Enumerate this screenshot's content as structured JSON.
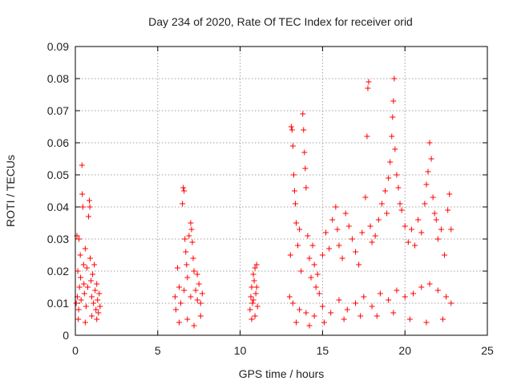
{
  "chart_data": {
    "type": "scatter",
    "title": "Day 234 of 2020, Rate Of TEC Index for receiver orid",
    "xlabel": "GPS time / hours",
    "ylabel": "ROTI / TECUs",
    "xlim": [
      0,
      25
    ],
    "ylim": [
      0,
      0.09
    ],
    "xticks": [
      0,
      5,
      10,
      15,
      20,
      25
    ],
    "xtick_labels": [
      "0",
      "5",
      "10",
      "15",
      "20",
      "25"
    ],
    "yticks": [
      0,
      0.01,
      0.02,
      0.03,
      0.04,
      0.05,
      0.06,
      0.07,
      0.08,
      0.09
    ],
    "ytick_labels": [
      "0",
      "0.01",
      "0.02",
      "0.03",
      "0.04",
      "0.05",
      "0.06",
      "0.07",
      "0.08",
      "0.09"
    ],
    "grid": true,
    "marker": "plus",
    "marker_color": "#ff0000",
    "series": [
      {
        "name": "ROTI",
        "points": [
          [
            0.05,
            0.01
          ],
          [
            0.1,
            0.031
          ],
          [
            0.12,
            0.012
          ],
          [
            0.15,
            0.02
          ],
          [
            0.2,
            0.008
          ],
          [
            0.22,
            0.03
          ],
          [
            0.25,
            0.015
          ],
          [
            0.3,
            0.025
          ],
          [
            0.32,
            0.018
          ],
          [
            0.35,
            0.011
          ],
          [
            0.4,
            0.053
          ],
          [
            0.42,
            0.044
          ],
          [
            0.45,
            0.04
          ],
          [
            0.5,
            0.022
          ],
          [
            0.52,
            0.016
          ],
          [
            0.55,
            0.013
          ],
          [
            0.6,
            0.027
          ],
          [
            0.65,
            0.009
          ],
          [
            0.7,
            0.021
          ],
          [
            0.75,
            0.015
          ],
          [
            0.8,
            0.037
          ],
          [
            0.85,
            0.042
          ],
          [
            0.88,
            0.04
          ],
          [
            0.9,
            0.024
          ],
          [
            0.95,
            0.017
          ],
          [
            1.0,
            0.012
          ],
          [
            1.05,
            0.019
          ],
          [
            1.1,
            0.01
          ],
          [
            1.15,
            0.022
          ],
          [
            1.2,
            0.014
          ],
          [
            1.25,
            0.008
          ],
          [
            1.3,
            0.016
          ],
          [
            1.35,
            0.011
          ],
          [
            1.4,
            0.007
          ],
          [
            1.45,
            0.013
          ],
          [
            1.5,
            0.009
          ],
          [
            0.18,
            0.005
          ],
          [
            0.6,
            0.004
          ],
          [
            1.0,
            0.006
          ],
          [
            1.3,
            0.005
          ],
          [
            6.05,
            0.012
          ],
          [
            6.1,
            0.008
          ],
          [
            6.2,
            0.021
          ],
          [
            6.3,
            0.015
          ],
          [
            6.4,
            0.01
          ],
          [
            6.5,
            0.041
          ],
          [
            6.55,
            0.046
          ],
          [
            6.6,
            0.045
          ],
          [
            6.65,
            0.03
          ],
          [
            6.7,
            0.026
          ],
          [
            6.75,
            0.022
          ],
          [
            6.8,
            0.018
          ],
          [
            6.9,
            0.031
          ],
          [
            7.0,
            0.035
          ],
          [
            7.05,
            0.033
          ],
          [
            7.1,
            0.029
          ],
          [
            7.15,
            0.024
          ],
          [
            7.2,
            0.02
          ],
          [
            7.3,
            0.014
          ],
          [
            7.4,
            0.011
          ],
          [
            7.5,
            0.016
          ],
          [
            7.6,
            0.01
          ],
          [
            7.7,
            0.013
          ],
          [
            6.3,
            0.004
          ],
          [
            6.8,
            0.005
          ],
          [
            7.2,
            0.003
          ],
          [
            7.6,
            0.006
          ],
          [
            6.6,
            0.014
          ],
          [
            7.0,
            0.012
          ],
          [
            7.4,
            0.019
          ],
          [
            10.6,
            0.008
          ],
          [
            10.65,
            0.012
          ],
          [
            10.7,
            0.015
          ],
          [
            10.75,
            0.01
          ],
          [
            10.8,
            0.019
          ],
          [
            10.85,
            0.017
          ],
          [
            10.9,
            0.021
          ],
          [
            10.95,
            0.013
          ],
          [
            11.0,
            0.022
          ],
          [
            11.05,
            0.009
          ],
          [
            10.7,
            0.005
          ],
          [
            10.9,
            0.006
          ],
          [
            11.0,
            0.015
          ],
          [
            10.8,
            0.011
          ],
          [
            13.0,
            0.012
          ],
          [
            13.05,
            0.025
          ],
          [
            13.1,
            0.065
          ],
          [
            13.15,
            0.064
          ],
          [
            13.2,
            0.059
          ],
          [
            13.25,
            0.05
          ],
          [
            13.3,
            0.045
          ],
          [
            13.35,
            0.041
          ],
          [
            13.4,
            0.035
          ],
          [
            13.5,
            0.028
          ],
          [
            13.6,
            0.033
          ],
          [
            13.7,
            0.02
          ],
          [
            13.8,
            0.069
          ],
          [
            13.85,
            0.064
          ],
          [
            13.9,
            0.057
          ],
          [
            13.95,
            0.052
          ],
          [
            14.0,
            0.046
          ],
          [
            14.1,
            0.031
          ],
          [
            14.2,
            0.024
          ],
          [
            14.3,
            0.018
          ],
          [
            14.4,
            0.028
          ],
          [
            14.5,
            0.022
          ],
          [
            14.6,
            0.015
          ],
          [
            14.7,
            0.019
          ],
          [
            14.8,
            0.013
          ],
          [
            15.0,
            0.025
          ],
          [
            15.2,
            0.032
          ],
          [
            15.4,
            0.027
          ],
          [
            15.6,
            0.036
          ],
          [
            15.8,
            0.04
          ],
          [
            15.9,
            0.033
          ],
          [
            16.0,
            0.028
          ],
          [
            16.2,
            0.024
          ],
          [
            16.4,
            0.038
          ],
          [
            16.6,
            0.034
          ],
          [
            16.8,
            0.03
          ],
          [
            17.0,
            0.026
          ],
          [
            17.2,
            0.022
          ],
          [
            17.4,
            0.032
          ],
          [
            17.6,
            0.043
          ],
          [
            17.7,
            0.062
          ],
          [
            17.75,
            0.077
          ],
          [
            17.8,
            0.079
          ],
          [
            17.9,
            0.034
          ],
          [
            18.0,
            0.029
          ],
          [
            18.2,
            0.031
          ],
          [
            18.4,
            0.036
          ],
          [
            18.6,
            0.041
          ],
          [
            18.8,
            0.045
          ],
          [
            18.9,
            0.038
          ],
          [
            19.0,
            0.049
          ],
          [
            19.1,
            0.054
          ],
          [
            19.2,
            0.062
          ],
          [
            19.25,
            0.068
          ],
          [
            19.3,
            0.073
          ],
          [
            19.35,
            0.08
          ],
          [
            19.4,
            0.058
          ],
          [
            19.5,
            0.05
          ],
          [
            19.6,
            0.046
          ],
          [
            19.7,
            0.041
          ],
          [
            19.8,
            0.039
          ],
          [
            20.0,
            0.034
          ],
          [
            20.2,
            0.029
          ],
          [
            20.4,
            0.033
          ],
          [
            20.6,
            0.028
          ],
          [
            20.8,
            0.036
          ],
          [
            21.0,
            0.032
          ],
          [
            21.2,
            0.041
          ],
          [
            21.3,
            0.047
          ],
          [
            21.4,
            0.051
          ],
          [
            21.5,
            0.06
          ],
          [
            21.6,
            0.055
          ],
          [
            21.7,
            0.043
          ],
          [
            21.8,
            0.038
          ],
          [
            21.9,
            0.036
          ],
          [
            22.0,
            0.03
          ],
          [
            22.2,
            0.033
          ],
          [
            22.4,
            0.025
          ],
          [
            22.6,
            0.039
          ],
          [
            22.7,
            0.044
          ],
          [
            22.8,
            0.033
          ],
          [
            13.2,
            0.01
          ],
          [
            13.6,
            0.008
          ],
          [
            14.0,
            0.007
          ],
          [
            14.5,
            0.006
          ],
          [
            15.0,
            0.009
          ],
          [
            15.5,
            0.007
          ],
          [
            16.0,
            0.011
          ],
          [
            16.5,
            0.008
          ],
          [
            17.0,
            0.01
          ],
          [
            17.5,
            0.012
          ],
          [
            18.0,
            0.009
          ],
          [
            18.5,
            0.013
          ],
          [
            19.0,
            0.011
          ],
          [
            19.5,
            0.014
          ],
          [
            20.0,
            0.012
          ],
          [
            20.5,
            0.013
          ],
          [
            21.0,
            0.015
          ],
          [
            21.5,
            0.016
          ],
          [
            22.0,
            0.014
          ],
          [
            22.5,
            0.012
          ],
          [
            22.8,
            0.01
          ],
          [
            13.4,
            0.004
          ],
          [
            14.2,
            0.003
          ],
          [
            15.1,
            0.004
          ],
          [
            16.3,
            0.005
          ],
          [
            17.3,
            0.006
          ],
          [
            18.3,
            0.006
          ],
          [
            19.3,
            0.007
          ],
          [
            20.3,
            0.005
          ],
          [
            21.3,
            0.004
          ],
          [
            22.3,
            0.005
          ]
        ]
      }
    ]
  }
}
